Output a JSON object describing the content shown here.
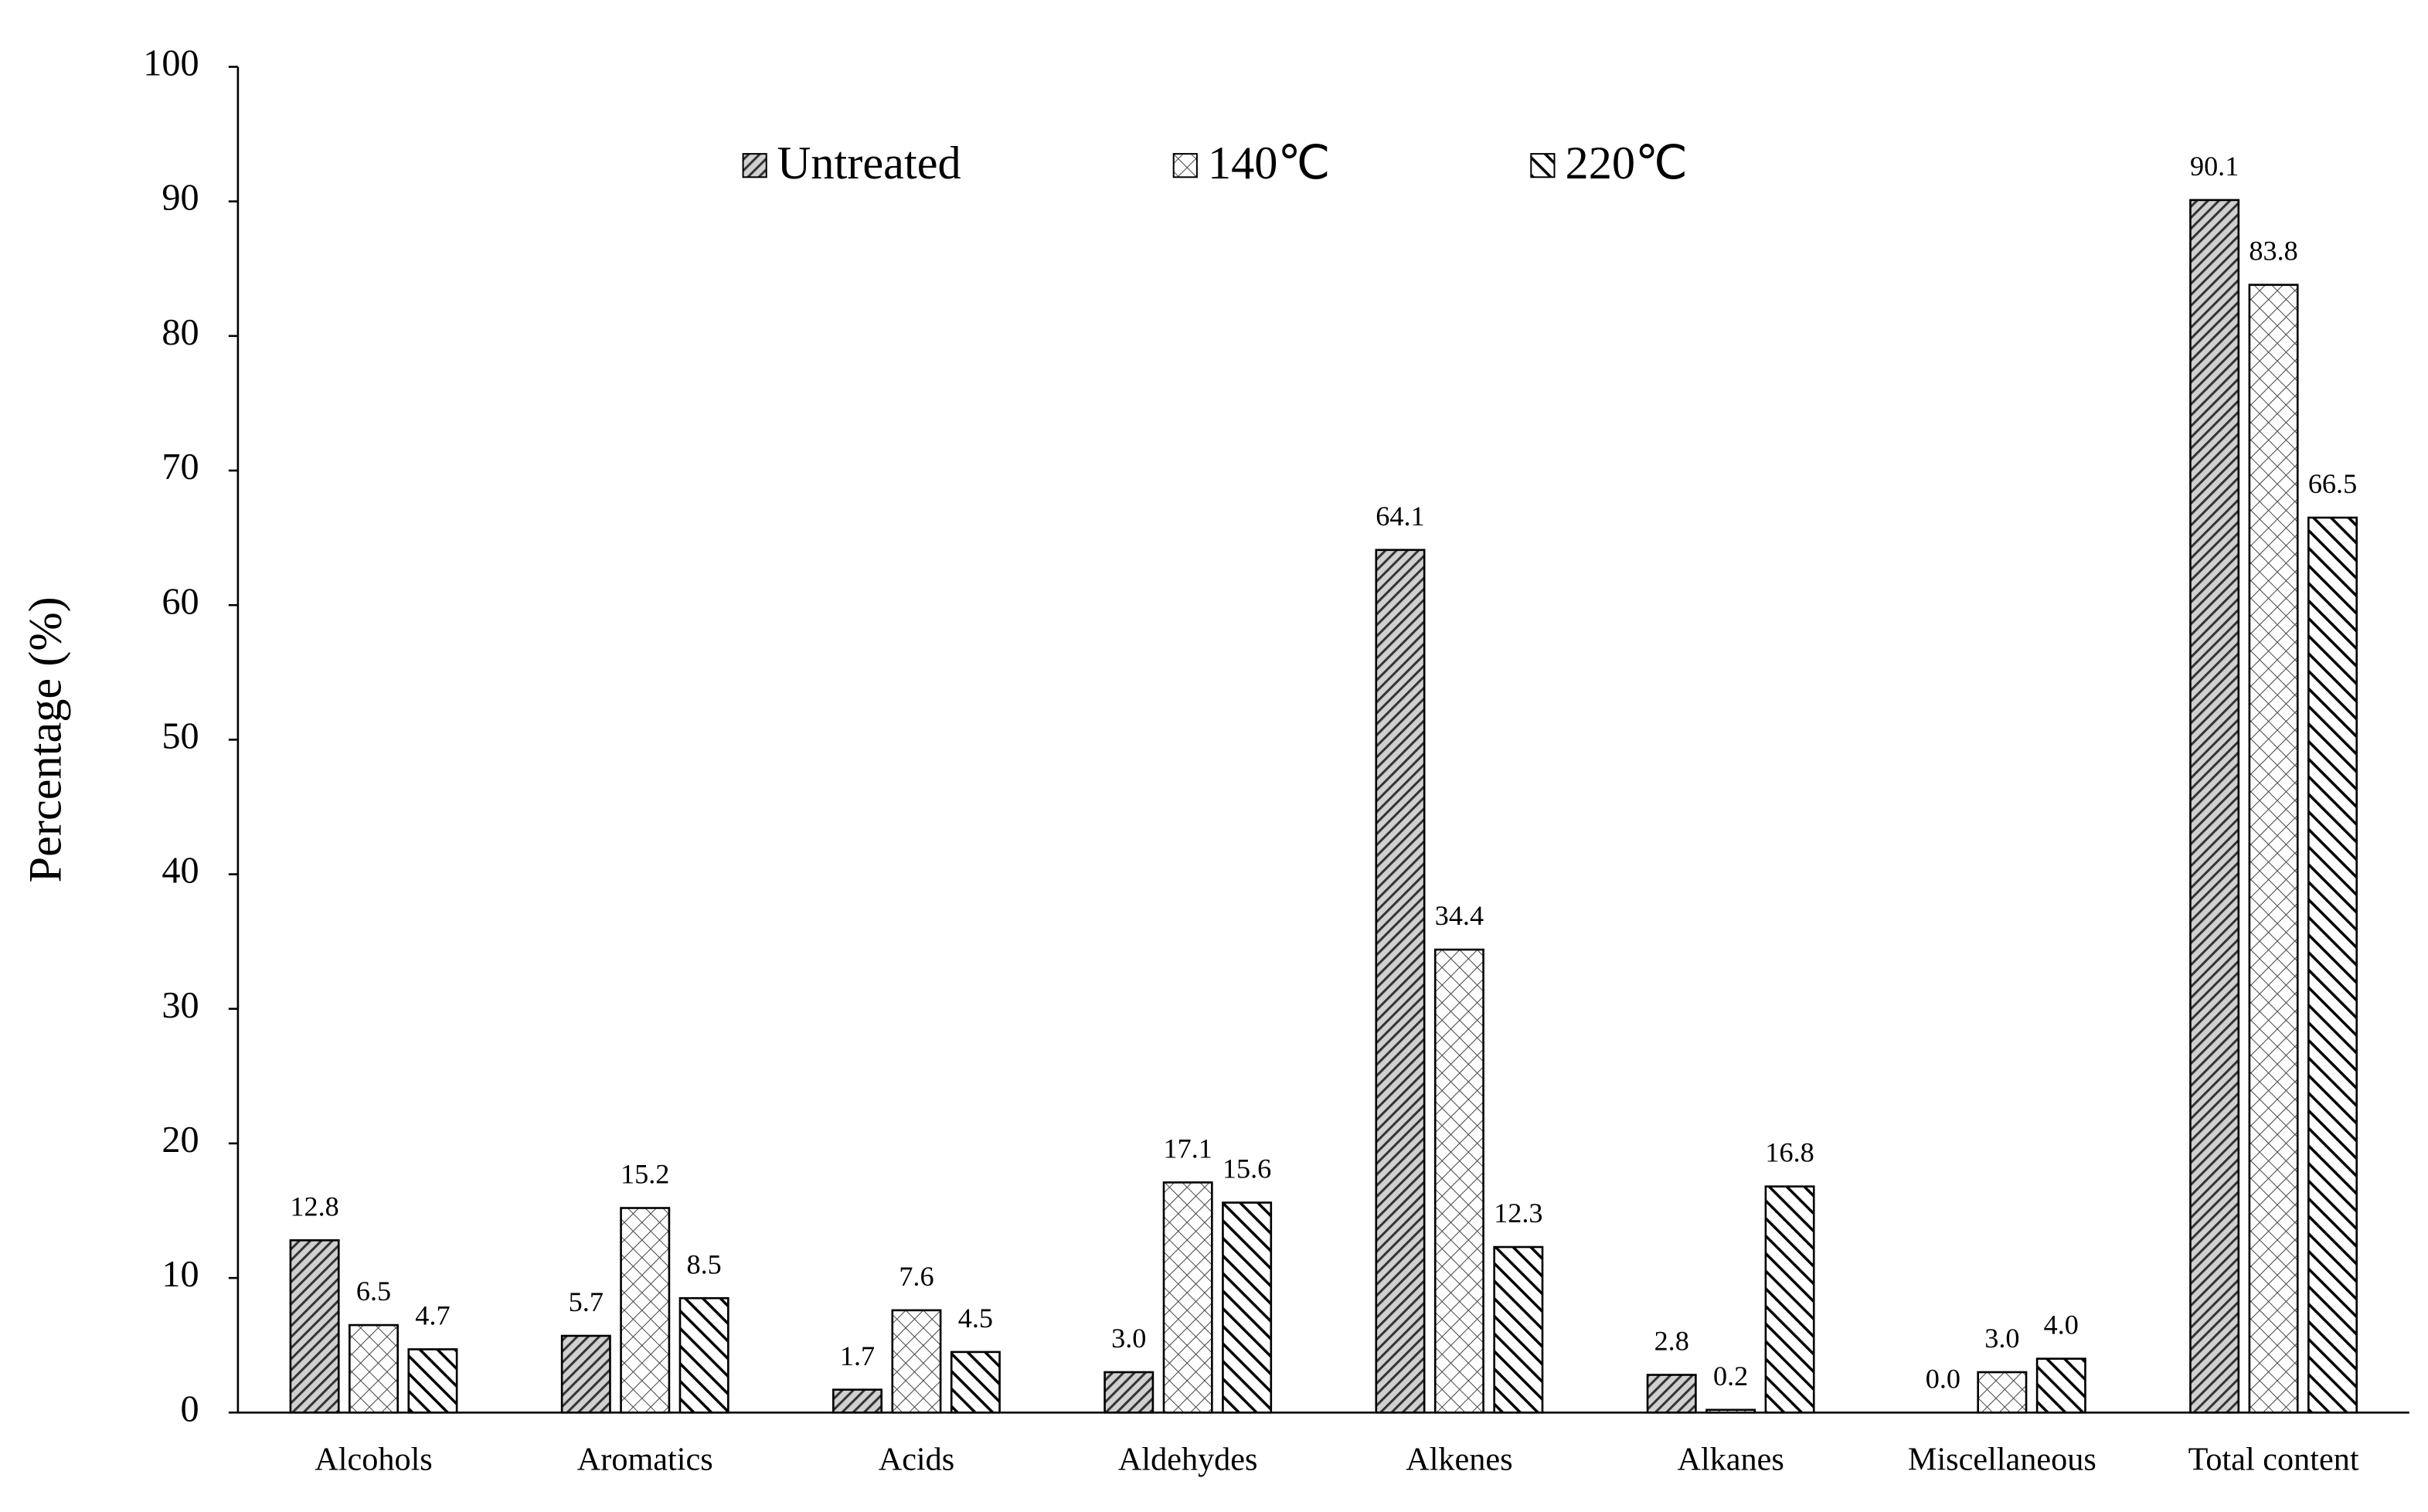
{
  "chart_data": {
    "type": "bar",
    "ylabel": "Percentage (%)",
    "categories": [
      "Alcohols",
      "Aromatics",
      "Acids",
      "Aldehydes",
      "Alkenes",
      "Alkanes",
      "Miscellaneous",
      "Total content"
    ],
    "series": [
      {
        "name": "Untreated",
        "values": [
          12.8,
          5.7,
          1.7,
          3.0,
          64.1,
          2.8,
          0.0,
          90.1
        ],
        "value_labels": [
          "12.8",
          "5.7",
          "1.7",
          "3.0",
          "64.1",
          "2.8",
          "0.0",
          "90.1"
        ]
      },
      {
        "name": "140℃",
        "values": [
          6.5,
          15.2,
          7.6,
          17.1,
          34.4,
          0.2,
          3.0,
          83.8
        ],
        "value_labels": [
          "6.5",
          "15.2",
          "7.6",
          "17.1",
          "34.4",
          "0.2",
          "3.0",
          "83.8"
        ]
      },
      {
        "name": "220℃",
        "values": [
          4.7,
          8.5,
          4.5,
          15.6,
          12.3,
          16.8,
          4.0,
          66.5
        ],
        "value_labels": [
          "4.7",
          "8.5",
          "4.5",
          "15.6",
          "12.3",
          "16.8",
          "4.0",
          "66.5"
        ]
      }
    ],
    "ylim": [
      0,
      100
    ],
    "yticks": [
      0,
      10,
      20,
      30,
      40,
      50,
      60,
      70,
      80,
      90,
      100
    ]
  }
}
